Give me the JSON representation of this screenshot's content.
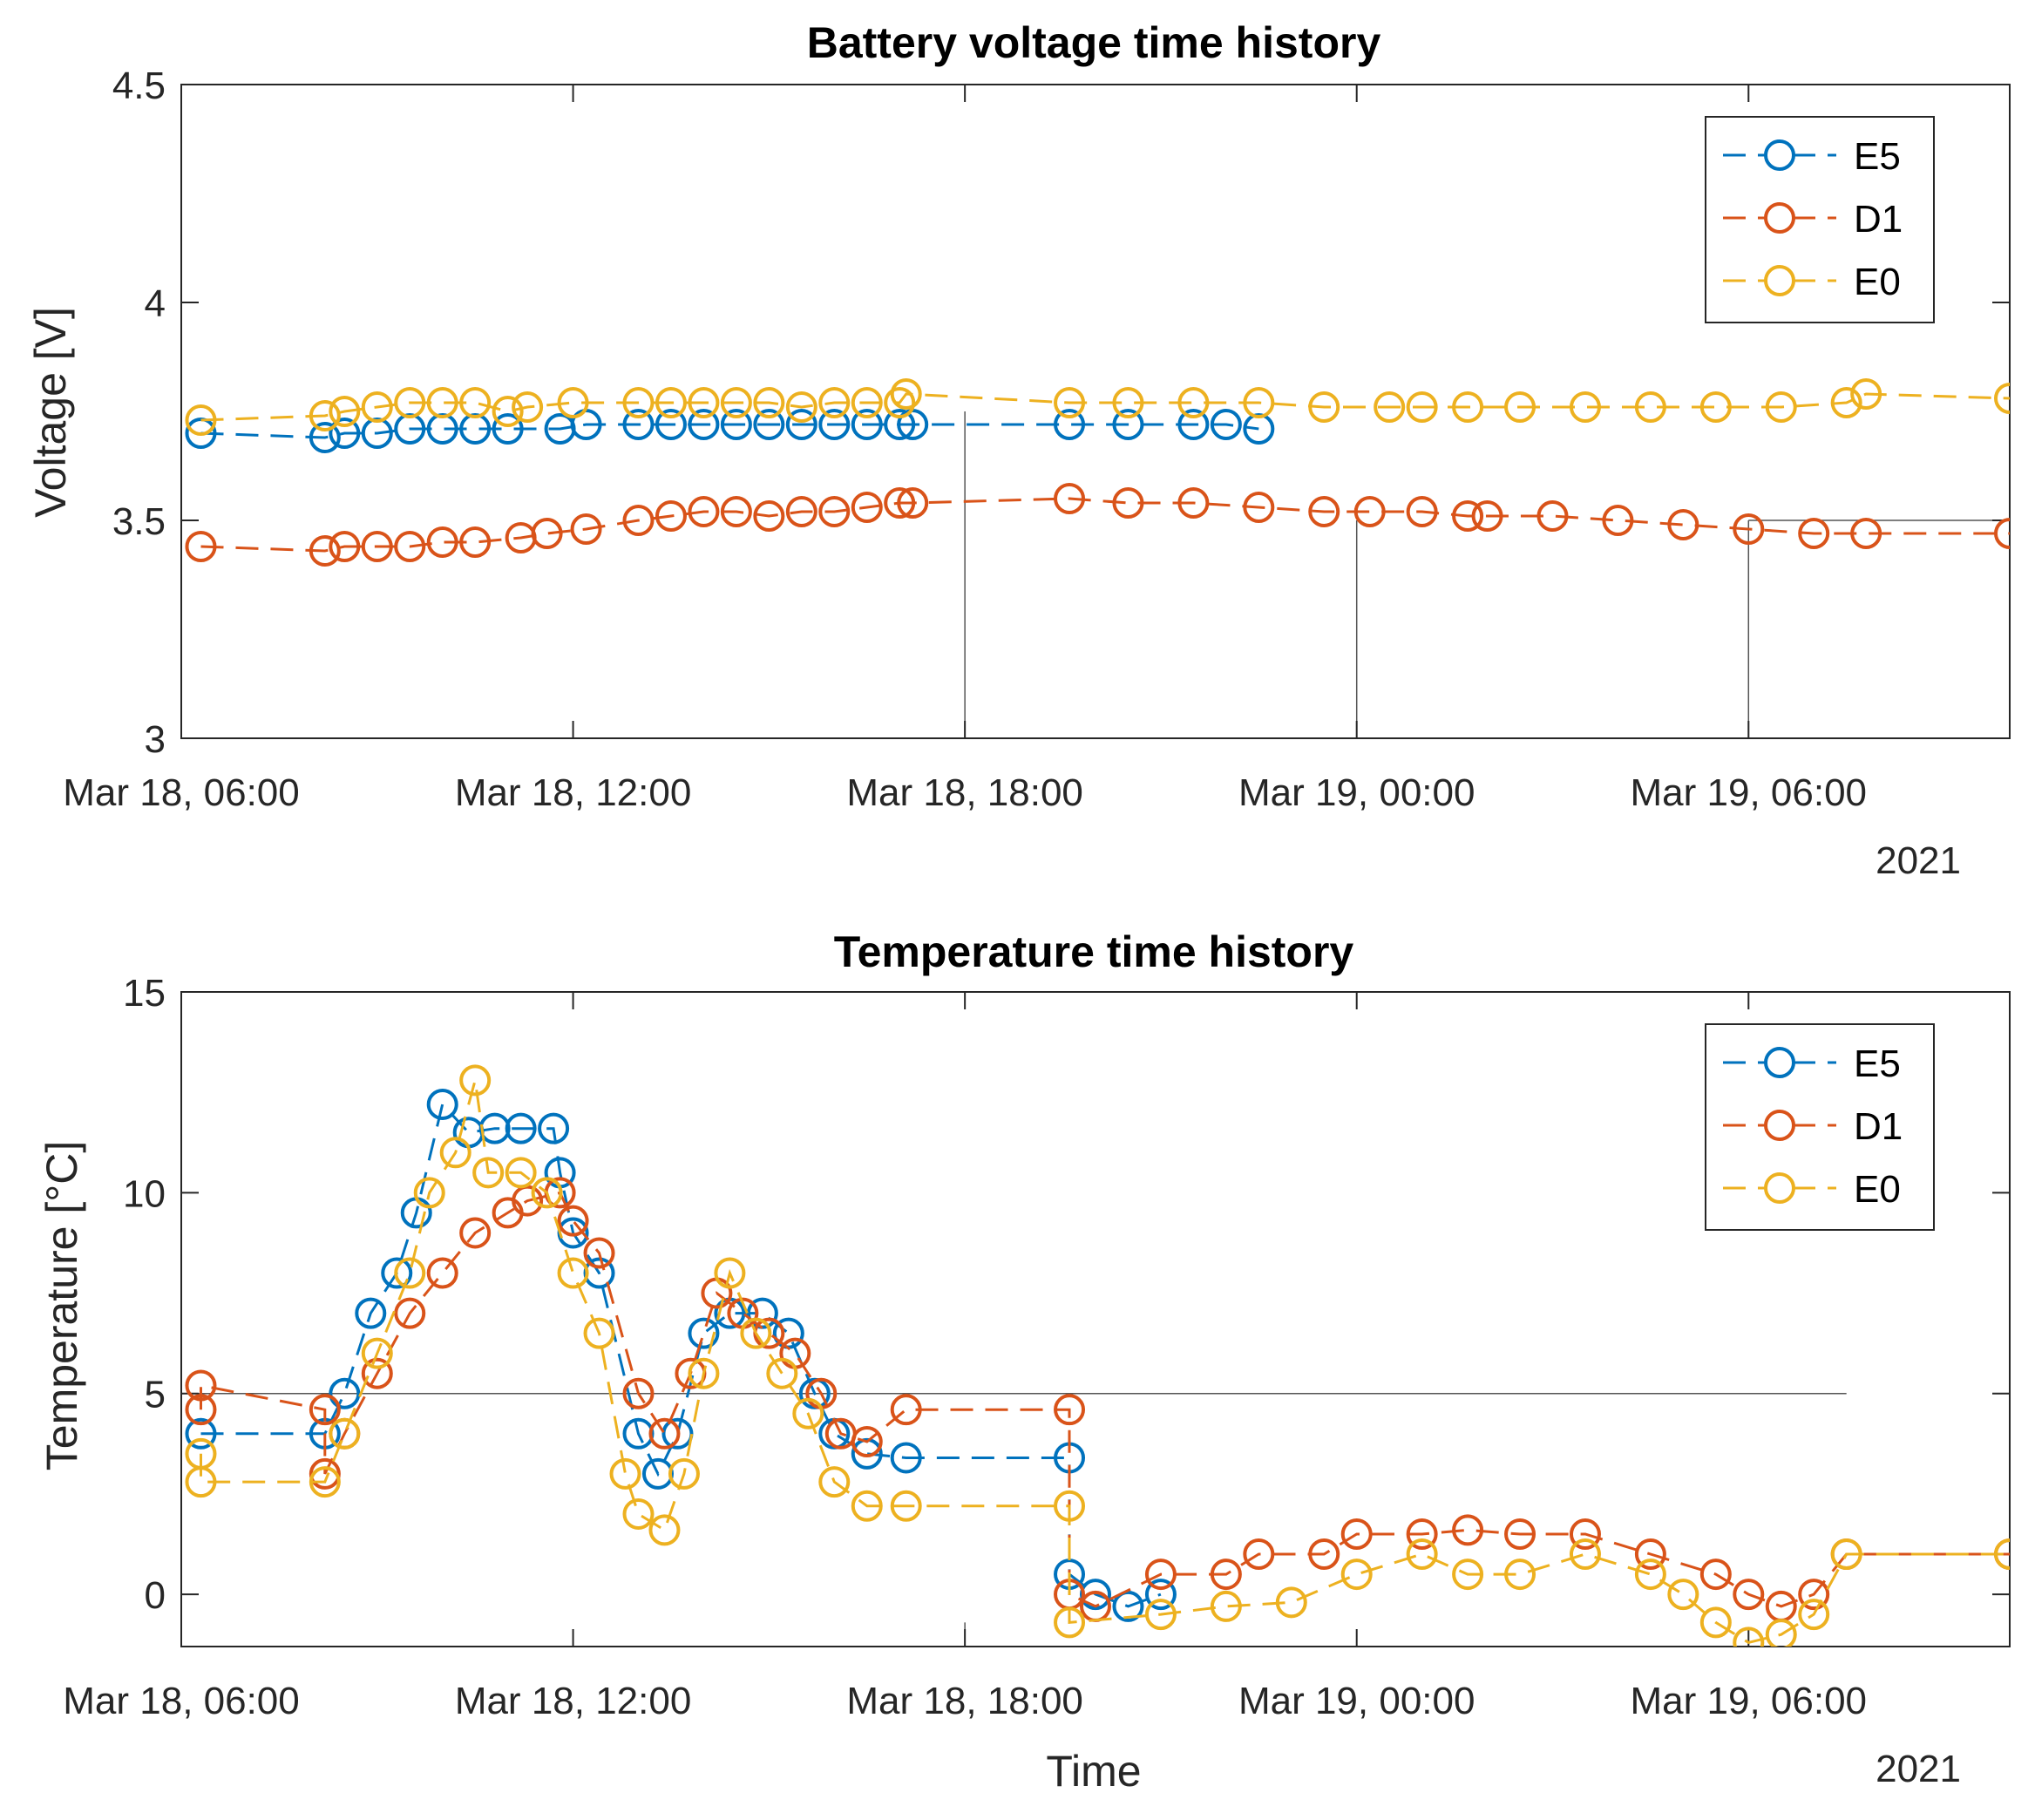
{
  "figure": {
    "background": "#ffffff",
    "xlabel": "Time",
    "year_label": "2021",
    "series_colors": {
      "E5": "#0072BD",
      "D1": "#D95319",
      "E0": "#EDB120"
    }
  },
  "chart_data": [
    {
      "type": "line",
      "title": "Battery voltage time history",
      "ylabel": "Voltage [V]",
      "xlabel": "",
      "x_unit": "hours since Mar 18, 00:00 (2021)",
      "xlim": [
        6,
        34
      ],
      "ylim": [
        3,
        4.5
      ],
      "yticks": [
        3,
        3.5,
        4,
        4.5
      ],
      "ytick_labels": [
        "3",
        "3.5",
        "4",
        "4.5"
      ],
      "xticks": [
        6,
        12,
        18,
        24,
        30
      ],
      "xtick_labels": [
        "Mar 18, 06:00",
        "Mar 18, 12:00",
        "Mar 18, 18:00",
        "Mar 19, 00:00",
        "Mar 19, 06:00"
      ],
      "year_label": "2021",
      "grid": false,
      "legend": {
        "position": "top-right",
        "entries": [
          "E5",
          "D1",
          "E0"
        ]
      },
      "reference_lines": [
        {
          "orientation": "vertical",
          "x": 18,
          "y_range": [
            3,
            3.75
          ]
        },
        {
          "orientation": "vertical",
          "x": 24,
          "y_range": [
            3,
            3.5
          ]
        },
        {
          "orientation": "vertical",
          "x": 30,
          "y_range": [
            3,
            3.5
          ]
        },
        {
          "orientation": "horizontal",
          "y": 3.5,
          "x_range": [
            30,
            34
          ]
        }
      ],
      "series": [
        {
          "name": "E5",
          "color": "#0072BD",
          "points": [
            [
              6.3,
              3.7
            ],
            [
              8.2,
              3.69
            ],
            [
              8.5,
              3.7
            ],
            [
              9.0,
              3.7
            ],
            [
              9.5,
              3.71
            ],
            [
              10.0,
              3.71
            ],
            [
              10.5,
              3.71
            ],
            [
              11.0,
              3.71
            ],
            [
              11.8,
              3.71
            ],
            [
              12.2,
              3.72
            ],
            [
              13.0,
              3.72
            ],
            [
              13.5,
              3.72
            ],
            [
              14.0,
              3.72
            ],
            [
              14.5,
              3.72
            ],
            [
              15.0,
              3.72
            ],
            [
              15.5,
              3.72
            ],
            [
              16.0,
              3.72
            ],
            [
              16.5,
              3.72
            ],
            [
              17.0,
              3.72
            ],
            [
              17.2,
              3.72
            ],
            [
              19.6,
              3.72
            ],
            [
              20.5,
              3.72
            ],
            [
              21.5,
              3.72
            ],
            [
              22.0,
              3.72
            ],
            [
              22.5,
              3.71
            ]
          ]
        },
        {
          "name": "D1",
          "color": "#D95319",
          "points": [
            [
              6.3,
              3.44
            ],
            [
              8.2,
              3.43
            ],
            [
              8.5,
              3.44
            ],
            [
              9.0,
              3.44
            ],
            [
              9.5,
              3.44
            ],
            [
              10.0,
              3.45
            ],
            [
              10.5,
              3.45
            ],
            [
              11.2,
              3.46
            ],
            [
              11.6,
              3.47
            ],
            [
              12.2,
              3.48
            ],
            [
              13.0,
              3.5
            ],
            [
              13.5,
              3.51
            ],
            [
              14.0,
              3.52
            ],
            [
              14.5,
              3.52
            ],
            [
              15.0,
              3.51
            ],
            [
              15.5,
              3.52
            ],
            [
              16.0,
              3.52
            ],
            [
              16.5,
              3.53
            ],
            [
              17.0,
              3.54
            ],
            [
              17.2,
              3.54
            ],
            [
              19.6,
              3.55
            ],
            [
              20.5,
              3.54
            ],
            [
              21.5,
              3.54
            ],
            [
              22.5,
              3.53
            ],
            [
              23.5,
              3.52
            ],
            [
              24.2,
              3.52
            ],
            [
              25.0,
              3.52
            ],
            [
              25.7,
              3.51
            ],
            [
              26.0,
              3.51
            ],
            [
              27.0,
              3.51
            ],
            [
              28.0,
              3.5
            ],
            [
              29.0,
              3.49
            ],
            [
              30.0,
              3.48
            ],
            [
              31.0,
              3.47
            ],
            [
              31.8,
              3.47
            ],
            [
              34.0,
              3.47
            ]
          ]
        },
        {
          "name": "E0",
          "color": "#EDB120",
          "points": [
            [
              6.3,
              3.73
            ],
            [
              8.2,
              3.74
            ],
            [
              8.5,
              3.75
            ],
            [
              9.0,
              3.76
            ],
            [
              9.5,
              3.77
            ],
            [
              10.0,
              3.77
            ],
            [
              10.5,
              3.77
            ],
            [
              11.0,
              3.75
            ],
            [
              11.3,
              3.76
            ],
            [
              12.0,
              3.77
            ],
            [
              13.0,
              3.77
            ],
            [
              13.5,
              3.77
            ],
            [
              14.0,
              3.77
            ],
            [
              14.5,
              3.77
            ],
            [
              15.0,
              3.77
            ],
            [
              15.5,
              3.76
            ],
            [
              16.0,
              3.77
            ],
            [
              16.5,
              3.77
            ],
            [
              17.0,
              3.77
            ],
            [
              17.1,
              3.79
            ],
            [
              19.6,
              3.77
            ],
            [
              20.5,
              3.77
            ],
            [
              21.5,
              3.77
            ],
            [
              22.5,
              3.77
            ],
            [
              23.5,
              3.76
            ],
            [
              24.5,
              3.76
            ],
            [
              25.0,
              3.76
            ],
            [
              25.7,
              3.76
            ],
            [
              26.5,
              3.76
            ],
            [
              27.5,
              3.76
            ],
            [
              28.5,
              3.76
            ],
            [
              29.5,
              3.76
            ],
            [
              30.5,
              3.76
            ],
            [
              31.5,
              3.77
            ],
            [
              31.8,
              3.79
            ],
            [
              34.0,
              3.78
            ]
          ]
        }
      ]
    },
    {
      "type": "line",
      "title": "Temperature time history",
      "ylabel": "Temperature [°C]",
      "xlabel": "Time",
      "x_unit": "hours since Mar 18, 00:00 (2021)",
      "xlim": [
        6,
        34
      ],
      "ylim": [
        -1.3,
        15
      ],
      "yticks": [
        0,
        5,
        10,
        15
      ],
      "ytick_labels": [
        "0",
        "5",
        "10",
        "15"
      ],
      "xticks": [
        6,
        12,
        18,
        24,
        30
      ],
      "xtick_labels": [
        "Mar 18, 06:00",
        "Mar 18, 12:00",
        "Mar 18, 18:00",
        "Mar 19, 00:00",
        "Mar 19, 06:00"
      ],
      "year_label": "2021",
      "grid": false,
      "legend": {
        "position": "top-right",
        "entries": [
          "E5",
          "D1",
          "E0"
        ]
      },
      "reference_lines": [
        {
          "orientation": "horizontal",
          "y": 5,
          "x_range": [
            6,
            31.5
          ]
        },
        {
          "orientation": "vertical",
          "x": 18,
          "y_range": [
            -1.3,
            -0.7
          ]
        }
      ],
      "series": [
        {
          "name": "E5",
          "color": "#0072BD",
          "points": [
            [
              6.3,
              4.0
            ],
            [
              8.2,
              4.0
            ],
            [
              8.5,
              5.0
            ],
            [
              8.9,
              7.0
            ],
            [
              9.3,
              8.0
            ],
            [
              9.6,
              9.5
            ],
            [
              10.0,
              12.2
            ],
            [
              10.4,
              11.5
            ],
            [
              10.8,
              11.6
            ],
            [
              11.2,
              11.6
            ],
            [
              11.7,
              11.6
            ],
            [
              11.8,
              10.5
            ],
            [
              12.0,
              9.0
            ],
            [
              12.4,
              8.0
            ],
            [
              13.0,
              4.0
            ],
            [
              13.3,
              3.0
            ],
            [
              13.6,
              4.0
            ],
            [
              14.0,
              6.5
            ],
            [
              14.4,
              7.0
            ],
            [
              14.9,
              7.0
            ],
            [
              15.3,
              6.5
            ],
            [
              15.7,
              5.0
            ],
            [
              16.0,
              4.0
            ],
            [
              16.5,
              3.5
            ],
            [
              17.1,
              3.4
            ],
            [
              19.6,
              3.4
            ],
            [
              19.6,
              0.5
            ],
            [
              20.0,
              0.0
            ],
            [
              20.5,
              -0.3
            ],
            [
              21.0,
              0.0
            ]
          ]
        },
        {
          "name": "D1",
          "color": "#D95319",
          "points": [
            [
              6.3,
              4.6
            ],
            [
              6.3,
              5.2
            ],
            [
              8.2,
              4.6
            ],
            [
              8.2,
              3.0
            ],
            [
              8.5,
              4.0
            ],
            [
              9.0,
              5.5
            ],
            [
              9.5,
              7.0
            ],
            [
              10.0,
              8.0
            ],
            [
              10.5,
              9.0
            ],
            [
              11.0,
              9.5
            ],
            [
              11.3,
              9.8
            ],
            [
              11.8,
              10.0
            ],
            [
              12.0,
              9.3
            ],
            [
              12.4,
              8.5
            ],
            [
              13.0,
              5.0
            ],
            [
              13.4,
              4.0
            ],
            [
              13.8,
              5.5
            ],
            [
              14.2,
              7.5
            ],
            [
              14.6,
              7.0
            ],
            [
              15.0,
              6.5
            ],
            [
              15.4,
              6.0
            ],
            [
              15.8,
              5.0
            ],
            [
              16.1,
              4.0
            ],
            [
              16.5,
              3.8
            ],
            [
              17.1,
              4.6
            ],
            [
              19.6,
              4.6
            ],
            [
              19.6,
              0.0
            ],
            [
              20.0,
              -0.3
            ],
            [
              21.0,
              0.5
            ],
            [
              22.0,
              0.5
            ],
            [
              22.5,
              1.0
            ],
            [
              23.5,
              1.0
            ],
            [
              24.0,
              1.5
            ],
            [
              25.0,
              1.5
            ],
            [
              25.7,
              1.6
            ],
            [
              26.5,
              1.5
            ],
            [
              27.5,
              1.5
            ],
            [
              28.5,
              1.0
            ],
            [
              29.5,
              0.5
            ],
            [
              30.0,
              0.0
            ],
            [
              30.5,
              -0.3
            ],
            [
              31.0,
              0.0
            ],
            [
              31.5,
              1.0
            ],
            [
              34.0,
              1.0
            ]
          ]
        },
        {
          "name": "E0",
          "color": "#EDB120",
          "points": [
            [
              6.3,
              3.5
            ],
            [
              6.3,
              2.8
            ],
            [
              8.2,
              2.8
            ],
            [
              8.5,
              4.0
            ],
            [
              9.0,
              6.0
            ],
            [
              9.5,
              8.0
            ],
            [
              9.8,
              10.0
            ],
            [
              10.2,
              11.0
            ],
            [
              10.5,
              12.8
            ],
            [
              10.7,
              10.5
            ],
            [
              11.2,
              10.5
            ],
            [
              11.6,
              10.0
            ],
            [
              12.0,
              8.0
            ],
            [
              12.4,
              6.5
            ],
            [
              12.8,
              3.0
            ],
            [
              13.0,
              2.0
            ],
            [
              13.4,
              1.6
            ],
            [
              13.7,
              3.0
            ],
            [
              14.0,
              5.5
            ],
            [
              14.4,
              8.0
            ],
            [
              14.8,
              6.5
            ],
            [
              15.2,
              5.5
            ],
            [
              15.6,
              4.5
            ],
            [
              16.0,
              2.8
            ],
            [
              16.5,
              2.2
            ],
            [
              17.1,
              2.2
            ],
            [
              19.6,
              2.2
            ],
            [
              19.6,
              -0.7
            ],
            [
              21.0,
              -0.5
            ],
            [
              22.0,
              -0.3
            ],
            [
              23.0,
              -0.2
            ],
            [
              24.0,
              0.5
            ],
            [
              25.0,
              1.0
            ],
            [
              25.7,
              0.5
            ],
            [
              26.5,
              0.5
            ],
            [
              27.5,
              1.0
            ],
            [
              28.5,
              0.5
            ],
            [
              29.0,
              0.0
            ],
            [
              29.5,
              -0.7
            ],
            [
              30.0,
              -1.2
            ],
            [
              30.5,
              -1.0
            ],
            [
              31.0,
              -0.5
            ],
            [
              31.5,
              1.0
            ],
            [
              34.0,
              1.0
            ]
          ]
        }
      ]
    }
  ]
}
